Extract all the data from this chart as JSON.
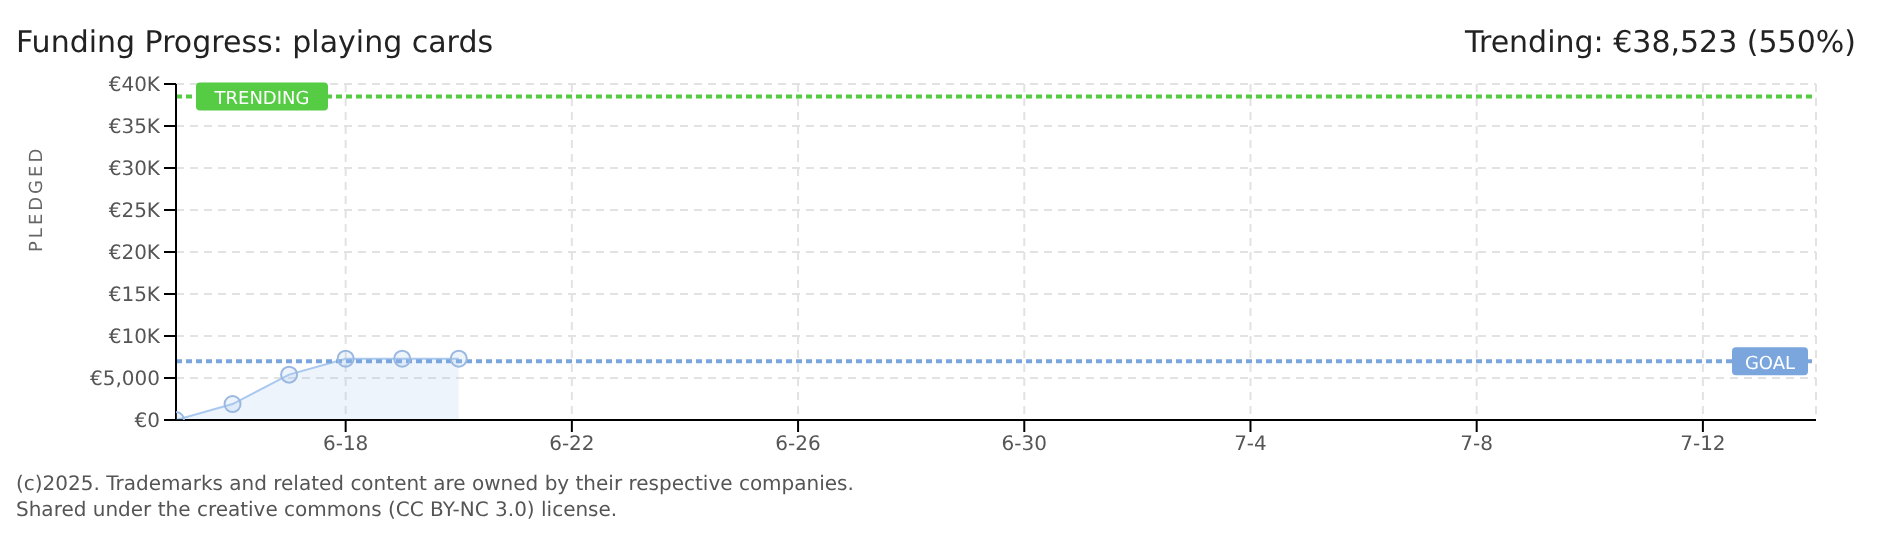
{
  "chart_data": {
    "type": "area",
    "title": "Funding Progress: playing cards",
    "subtitle": "Trending: €38,523 (550%)",
    "ylabel": "PLEDGED",
    "x": [
      "--06-15",
      "--06-16",
      "--06-17",
      "--06-18",
      "--06-19",
      "--06-20"
    ],
    "series": [
      {
        "color": "#a9c8ef",
        "values": [
          0,
          1900,
          5400,
          7300,
          7300,
          7300
        ]
      }
    ],
    "marker": "circle",
    "grid": true,
    "xlim": [
      "--06-15",
      "--07-14"
    ],
    "xticks": [
      {
        "value": "--06-18",
        "label": "6-18"
      },
      {
        "value": "--06-22",
        "label": "6-22"
      },
      {
        "value": "--06-26",
        "label": "6-26"
      },
      {
        "value": "--06-30",
        "label": "6-30"
      },
      {
        "value": "--07-04",
        "label": "7-4"
      },
      {
        "value": "--07-08",
        "label": "7-8"
      },
      {
        "value": "--07-12",
        "label": "7-12"
      }
    ],
    "ylim": [
      0,
      40000
    ],
    "yticks": [
      {
        "value": 0,
        "label": "€0"
      },
      {
        "value": 5000,
        "label": "€5,000"
      },
      {
        "value": 10000,
        "label": "€10K"
      },
      {
        "value": 15000,
        "label": "€15K"
      },
      {
        "value": 20000,
        "label": "€20K"
      },
      {
        "value": 25000,
        "label": "€25K"
      },
      {
        "value": 30000,
        "label": "€30K"
      },
      {
        "value": 35000,
        "label": "€35K"
      },
      {
        "value": 40000,
        "label": "€40K"
      }
    ],
    "ref_lines": [
      {
        "axis": "y",
        "value": 38523,
        "label": "TRENDING",
        "color": "#55cc44",
        "line_style": "dotted"
      },
      {
        "axis": "y",
        "value": 7000,
        "label": "GOAL",
        "color": "#7aa6dd",
        "line_style": "dotted"
      }
    ],
    "annotations": [
      "(c)2025. Trademarks and related content are owned by their respective companies.",
      "Shared under the creative commons (CC BY-NC 3.0) license."
    ]
  }
}
